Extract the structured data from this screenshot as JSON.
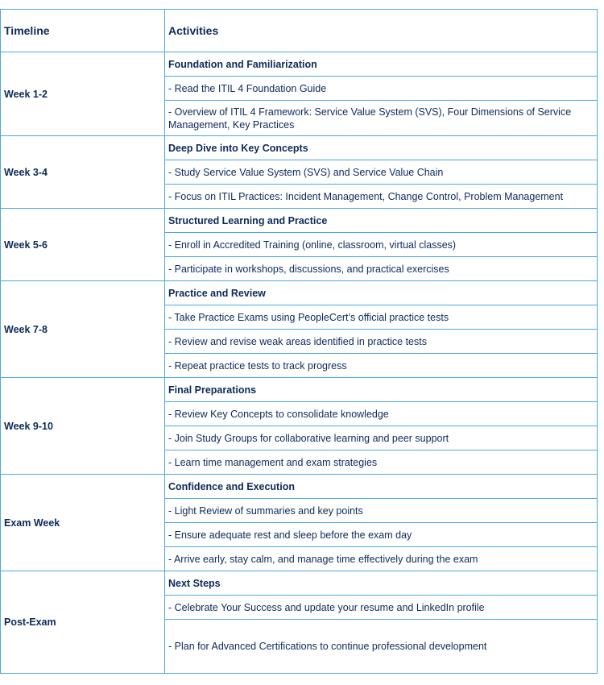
{
  "header": {
    "timeline": "Timeline",
    "activities": "Activities"
  },
  "rows": [
    {
      "timeline": "Week 1-2",
      "heading": "Foundation and Familiarization",
      "items": [
        "- Read the ITIL 4 Foundation Guide",
        "- Overview of ITIL 4 Framework: Service Value System (SVS), Four Dimensions of Service Management, Key Practices"
      ]
    },
    {
      "timeline": "Week 3-4",
      "heading": "Deep Dive into Key Concepts",
      "items": [
        "- Study Service Value System (SVS) and Service Value Chain",
        "- Focus on ITIL Practices: Incident Management, Change Control, Problem Management"
      ]
    },
    {
      "timeline": "Week 5-6",
      "heading": "Structured Learning and Practice",
      "items": [
        "- Enroll in Accredited Training (online, classroom, virtual classes)",
        "- Participate in workshops, discussions, and practical exercises"
      ]
    },
    {
      "timeline": "Week 7-8",
      "heading": "Practice and Review",
      "items": [
        "- Take Practice Exams using PeopleCert’s official practice tests",
        "- Review and revise weak areas identified in practice tests",
        "- Repeat practice tests to track progress"
      ]
    },
    {
      "timeline": "Week 9-10",
      "heading": "Final Preparations",
      "items": [
        "- Review Key Concepts to consolidate knowledge",
        "- Join Study Groups for collaborative learning and peer support",
        "- Learn time management and exam strategies"
      ]
    },
    {
      "timeline": "Exam Week",
      "heading": "Confidence and Execution",
      "items": [
        "- Light Review of summaries and key points",
        "- Ensure adequate rest and sleep before the exam day",
        "- Arrive early, stay calm, and manage time effectively during the exam"
      ]
    },
    {
      "timeline": "Post-Exam",
      "heading": "Next Steps",
      "items": [
        "- Celebrate Your Success and update your resume and LinkedIn profile",
        "- Plan for Advanced Certifications to continue professional development"
      ]
    }
  ]
}
